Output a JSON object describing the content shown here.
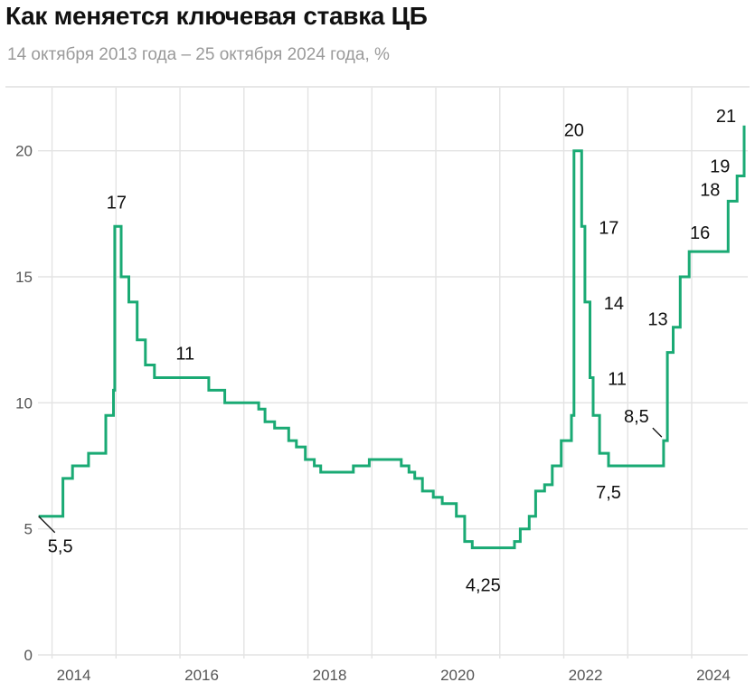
{
  "header": {
    "title": "Как меняется ключевая ставка ЦБ",
    "subtitle": "14 октября 2013 года – 25 октября 2024 года, %"
  },
  "chart_data": {
    "type": "line",
    "title": "Как меняется ключевая ставка ЦБ",
    "subtitle": "14 октября 2013 года – 25 октября 2024 года, %",
    "xlabel": "",
    "ylabel": "",
    "step": true,
    "xlim": [
      2013.78,
      2024.82
    ],
    "ylim": [
      0,
      22.5
    ],
    "grid": true,
    "line_color": "#1aaa74",
    "x_ticks": [
      2014,
      2016,
      2018,
      2020,
      2022,
      2024
    ],
    "x_tick_labels": [
      "2014",
      "2016",
      "2018",
      "2020",
      "2022",
      "2024"
    ],
    "y_ticks": [
      0,
      5,
      10,
      15,
      20
    ],
    "y_tick_labels": [
      "0",
      "5",
      "10",
      "15",
      "20"
    ],
    "series": [
      {
        "points": [
          [
            2013.79,
            5.5
          ],
          [
            2014.17,
            7.0
          ],
          [
            2014.32,
            7.5
          ],
          [
            2014.57,
            8.0
          ],
          [
            2014.84,
            9.5
          ],
          [
            2014.96,
            10.5
          ],
          [
            2014.98,
            17.0
          ],
          [
            2015.08,
            15.0
          ],
          [
            2015.2,
            14.0
          ],
          [
            2015.33,
            12.5
          ],
          [
            2015.46,
            11.5
          ],
          [
            2015.6,
            11.0
          ],
          [
            2016.45,
            10.5
          ],
          [
            2016.7,
            10.0
          ],
          [
            2017.23,
            9.75
          ],
          [
            2017.33,
            9.25
          ],
          [
            2017.48,
            9.0
          ],
          [
            2017.7,
            8.5
          ],
          [
            2017.82,
            8.25
          ],
          [
            2017.96,
            7.75
          ],
          [
            2018.1,
            7.5
          ],
          [
            2018.2,
            7.25
          ],
          [
            2018.71,
            7.5
          ],
          [
            2018.96,
            7.75
          ],
          [
            2019.46,
            7.5
          ],
          [
            2019.58,
            7.25
          ],
          [
            2019.67,
            7.0
          ],
          [
            2019.79,
            6.5
          ],
          [
            2019.96,
            6.25
          ],
          [
            2020.1,
            6.0
          ],
          [
            2020.32,
            5.5
          ],
          [
            2020.45,
            4.5
          ],
          [
            2020.57,
            4.25
          ],
          [
            2021.23,
            4.5
          ],
          [
            2021.32,
            5.0
          ],
          [
            2021.46,
            5.5
          ],
          [
            2021.56,
            6.5
          ],
          [
            2021.7,
            6.75
          ],
          [
            2021.82,
            7.5
          ],
          [
            2021.96,
            8.5
          ],
          [
            2022.12,
            9.5
          ],
          [
            2022.16,
            20.0
          ],
          [
            2022.28,
            17.0
          ],
          [
            2022.33,
            14.0
          ],
          [
            2022.41,
            11.0
          ],
          [
            2022.46,
            9.5
          ],
          [
            2022.56,
            8.0
          ],
          [
            2022.7,
            7.5
          ],
          [
            2023.56,
            8.5
          ],
          [
            2023.62,
            12.0
          ],
          [
            2023.71,
            13.0
          ],
          [
            2023.82,
            15.0
          ],
          [
            2023.96,
            16.0
          ],
          [
            2024.57,
            18.0
          ],
          [
            2024.71,
            19.0
          ],
          [
            2024.82,
            21.0
          ]
        ]
      }
    ],
    "annotations": [
      {
        "text": "5,5",
        "x": 2013.79,
        "y": 5.5
      },
      {
        "text": "17",
        "x": 2014.98,
        "y": 17.0
      },
      {
        "text": "11",
        "x": 2015.6,
        "y": 11.0
      },
      {
        "text": "4,25",
        "x": 2020.57,
        "y": 4.25
      },
      {
        "text": "20",
        "x": 2022.16,
        "y": 20.0
      },
      {
        "text": "17",
        "x": 2022.28,
        "y": 17.0
      },
      {
        "text": "14",
        "x": 2022.33,
        "y": 14.0
      },
      {
        "text": "11",
        "x": 2022.41,
        "y": 11.0
      },
      {
        "text": "7,5",
        "x": 2022.7,
        "y": 7.5
      },
      {
        "text": "8,5",
        "x": 2023.56,
        "y": 8.5
      },
      {
        "text": "13",
        "x": 2023.71,
        "y": 13.0
      },
      {
        "text": "16",
        "x": 2023.96,
        "y": 16.0
      },
      {
        "text": "18",
        "x": 2024.57,
        "y": 18.0
      },
      {
        "text": "19",
        "x": 2024.71,
        "y": 19.0
      },
      {
        "text": "21",
        "x": 2024.82,
        "y": 21.0
      }
    ]
  }
}
